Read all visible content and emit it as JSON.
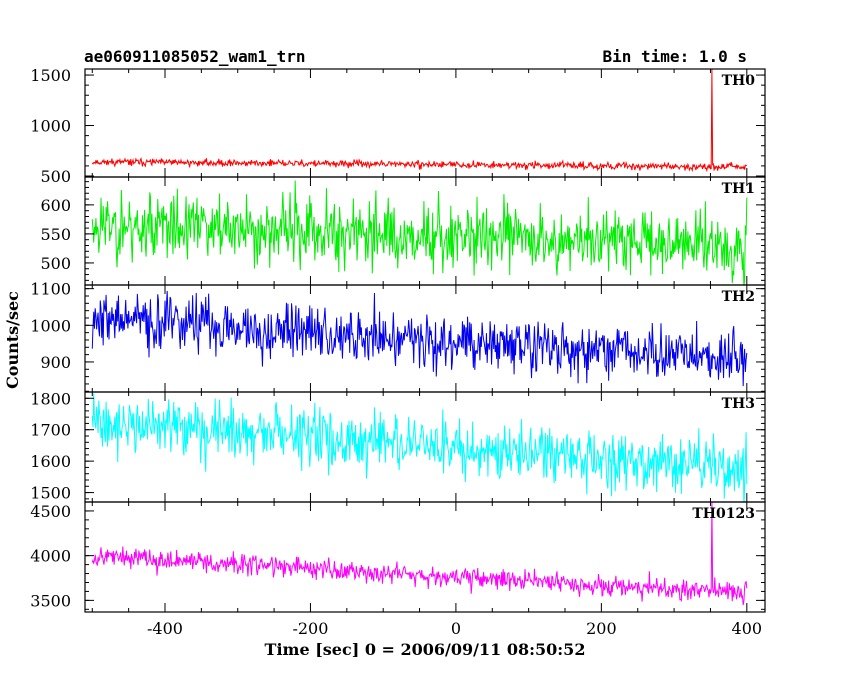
{
  "chart_data": {
    "type": "line",
    "title_left": "ae060911085052_wam1_trn",
    "title_right": "Bin time: 1.0 s",
    "xlabel": "Time [sec] 0 = 2006/09/11 08:50:52",
    "ylabel": "Counts/sec",
    "xlim": [
      -510,
      425
    ],
    "x_ticks": [
      -400,
      -200,
      0,
      200,
      400
    ],
    "bin_time_s": 1.0,
    "panels": [
      {
        "label": "TH0",
        "color": "#ff0000",
        "ylim": [
          490,
          1560
        ],
        "y_ticks": [
          500,
          1000,
          1500
        ],
        "series": {
          "x_start": -500,
          "x_end": 400,
          "mean_start": 640,
          "mean_end": 590,
          "noise": 28,
          "seed": 11,
          "spikes": [
            {
              "x": 352,
              "y": 1560
            }
          ]
        }
      },
      {
        "label": "TH1",
        "color": "#00ee00",
        "ylim": [
          462,
          648
        ],
        "y_ticks": [
          500,
          550,
          600
        ],
        "series": {
          "x_start": -500,
          "x_end": 400,
          "mean_start": 566,
          "mean_end": 532,
          "noise": 48,
          "seed": 23,
          "spikes": []
        }
      },
      {
        "label": "TH2",
        "color": "#0000ee",
        "ylim": [
          818,
          1110
        ],
        "y_ticks": [
          900,
          1000,
          1100
        ],
        "series": {
          "x_start": -500,
          "x_end": 400,
          "mean_start": 1020,
          "mean_end": 905,
          "noise": 62,
          "seed": 37,
          "spikes": []
        }
      },
      {
        "label": "TH3",
        "color": "#00ffff",
        "ylim": [
          1470,
          1820
        ],
        "y_ticks": [
          1500,
          1600,
          1700,
          1800
        ],
        "series": {
          "x_start": -500,
          "x_end": 400,
          "mean_start": 1725,
          "mean_end": 1575,
          "noise": 72,
          "seed": 41,
          "spikes": []
        }
      },
      {
        "label": "TH0123",
        "color": "#ff00ff",
        "ylim": [
          3370,
          4600
        ],
        "y_ticks": [
          3500,
          4000,
          4500
        ],
        "series": {
          "x_start": -500,
          "x_end": 400,
          "mean_start": 4000,
          "mean_end": 3580,
          "noise": 95,
          "seed": 53,
          "spikes": [
            {
              "x": 352,
              "y": 4600
            }
          ]
        }
      }
    ]
  }
}
